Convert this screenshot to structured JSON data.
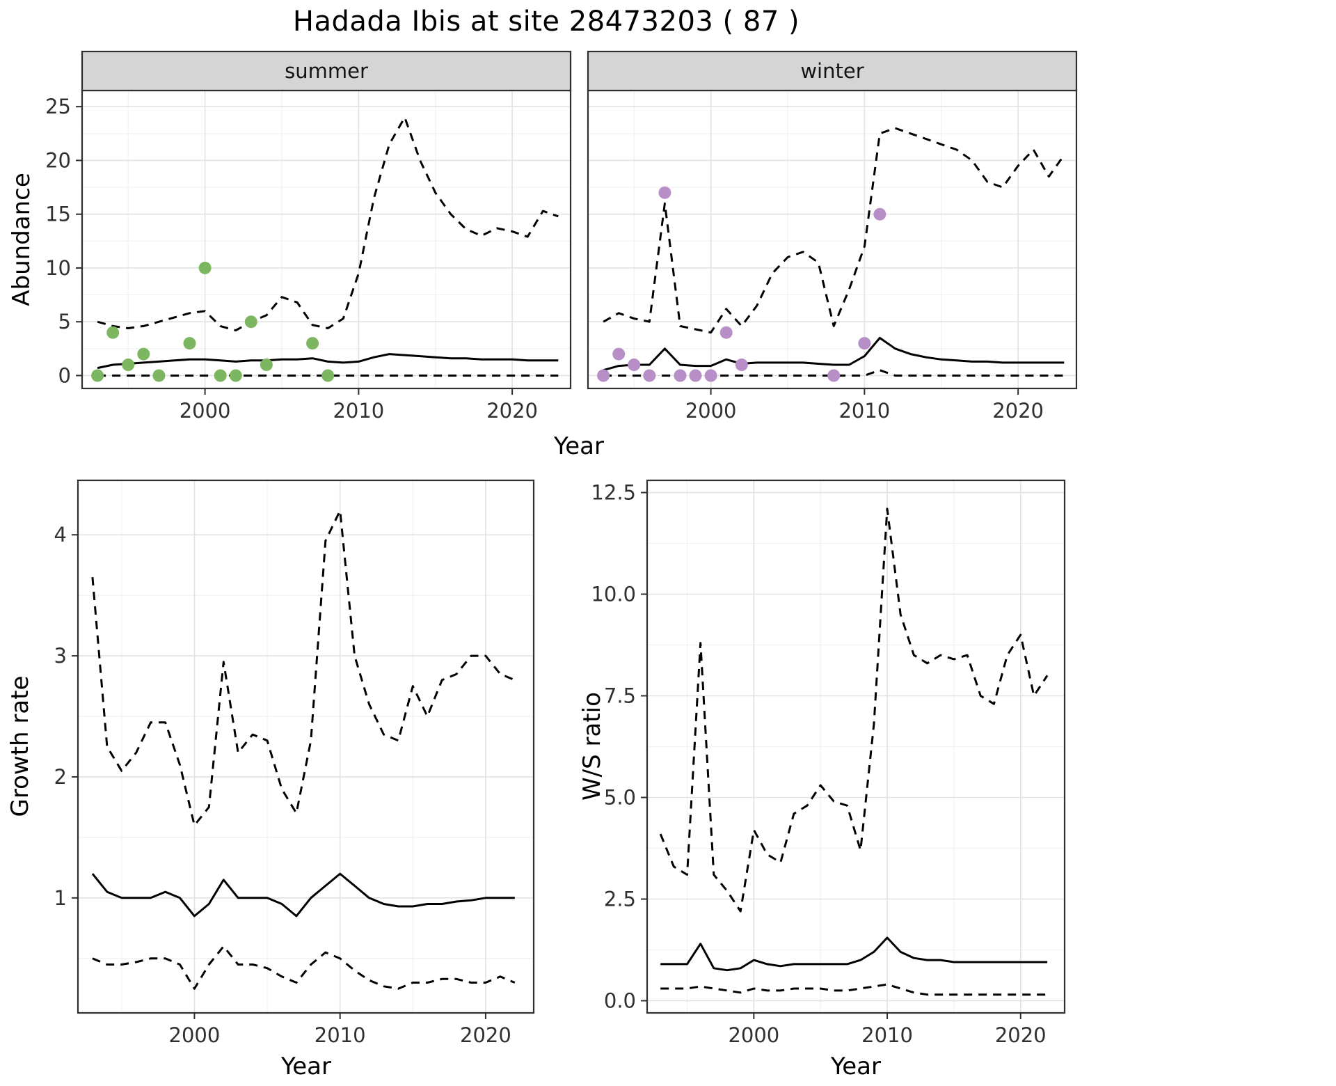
{
  "title": "Hadada Ibis at site 28473203 ( 87 )",
  "colors": {
    "summer_point": "#7db661",
    "winter_point": "#b78fc6",
    "line": "#000000",
    "strip_bg": "#d5d5d5",
    "strip_text": "#141414",
    "panel_border": "#2f2f2f",
    "grid_major": "#e2e2e2",
    "grid_minor": "#f1f1f1",
    "tick_text": "#303030",
    "background": "#ffffff"
  },
  "chart_data": [
    {
      "id": "abundance-summer",
      "type": "line",
      "facet_label": "summer",
      "xlabel": "Year",
      "ylabel": "Abundance",
      "xlim": [
        1992,
        2023.8
      ],
      "ylim": [
        -1.2,
        26.5
      ],
      "xticks": [
        2000,
        2010,
        2020
      ],
      "xtick_labels": [
        "2000",
        "2010",
        "2020"
      ],
      "yticks": [
        0,
        5,
        10,
        15,
        20,
        25
      ],
      "ytick_labels": [
        "0",
        "5",
        "10",
        "15",
        "20",
        "25"
      ],
      "years": [
        1993,
        1994,
        1995,
        1996,
        1997,
        1998,
        1999,
        2000,
        2001,
        2002,
        2003,
        2004,
        2005,
        2006,
        2007,
        2008,
        2009,
        2010,
        2011,
        2012,
        2013,
        2014,
        2015,
        2016,
        2017,
        2018,
        2019,
        2020,
        2021,
        2022,
        2023
      ],
      "series": [
        {
          "name": "upper-ci",
          "style": "dashed",
          "y": [
            5.0,
            4.6,
            4.4,
            4.6,
            5.0,
            5.4,
            5.8,
            6.0,
            4.6,
            4.2,
            5.0,
            5.6,
            7.3,
            6.8,
            4.7,
            4.4,
            5.3,
            9.5,
            16.5,
            21.5,
            24.0,
            20.0,
            17.0,
            15.0,
            13.6,
            13.0,
            13.7,
            13.4,
            12.9,
            15.3,
            14.8
          ]
        },
        {
          "name": "median",
          "style": "solid",
          "y": [
            0.7,
            1.0,
            1.1,
            1.2,
            1.3,
            1.4,
            1.5,
            1.5,
            1.4,
            1.3,
            1.4,
            1.4,
            1.5,
            1.5,
            1.6,
            1.3,
            1.2,
            1.3,
            1.7,
            2.0,
            1.9,
            1.8,
            1.7,
            1.6,
            1.6,
            1.5,
            1.5,
            1.5,
            1.4,
            1.4,
            1.4
          ]
        },
        {
          "name": "lower-ci",
          "style": "dashed",
          "y": [
            0,
            0,
            0,
            0,
            0,
            0,
            0,
            0,
            0,
            0,
            0,
            0,
            0,
            0,
            0,
            0,
            0,
            0,
            0,
            0,
            0,
            0,
            0,
            0,
            0,
            0,
            0,
            0,
            0,
            0,
            0
          ]
        }
      ],
      "points": {
        "name": "observed-counts-summer",
        "color": "#7db661",
        "x": [
          1993,
          1994,
          1995,
          1996,
          1997,
          1999,
          2000,
          2001,
          2002,
          2003,
          2004,
          2007,
          2008
        ],
        "y": [
          0,
          4,
          1,
          2,
          0,
          3,
          10,
          0,
          0,
          5,
          1,
          3,
          0
        ]
      }
    },
    {
      "id": "abundance-winter",
      "type": "line",
      "facet_label": "winter",
      "xlabel": "Year",
      "ylabel": "Abundance",
      "xlim": [
        1992,
        2023.8
      ],
      "ylim": [
        -1.2,
        26.5
      ],
      "xticks": [
        2000,
        2010,
        2020
      ],
      "xtick_labels": [
        "2000",
        "2010",
        "2020"
      ],
      "yticks": [
        0,
        5,
        10,
        15,
        20,
        25
      ],
      "ytick_labels": [
        "0",
        "5",
        "10",
        "15",
        "20",
        "25"
      ],
      "years": [
        1993,
        1994,
        1995,
        1996,
        1997,
        1998,
        1999,
        2000,
        2001,
        2002,
        2003,
        2004,
        2005,
        2006,
        2007,
        2008,
        2009,
        2010,
        2011,
        2012,
        2013,
        2014,
        2015,
        2016,
        2017,
        2018,
        2019,
        2020,
        2021,
        2022,
        2023
      ],
      "series": [
        {
          "name": "upper-ci",
          "style": "dashed",
          "y": [
            5.0,
            5.8,
            5.3,
            5.0,
            16.0,
            4.6,
            4.3,
            4.0,
            6.2,
            4.6,
            6.5,
            9.5,
            11.0,
            11.5,
            10.5,
            4.6,
            8.0,
            12.0,
            22.5,
            23.0,
            22.5,
            22.0,
            21.5,
            21.0,
            20.0,
            18.0,
            17.5,
            19.5,
            21.0,
            18.5,
            20.5
          ]
        },
        {
          "name": "median",
          "style": "solid",
          "y": [
            0.5,
            0.9,
            1.0,
            1.0,
            2.5,
            1.0,
            0.9,
            0.9,
            1.5,
            1.1,
            1.2,
            1.2,
            1.2,
            1.2,
            1.1,
            1.0,
            1.0,
            1.8,
            3.5,
            2.5,
            2.0,
            1.7,
            1.5,
            1.4,
            1.3,
            1.3,
            1.2,
            1.2,
            1.2,
            1.2,
            1.2
          ]
        },
        {
          "name": "lower-ci",
          "style": "dashed",
          "y": [
            0,
            0,
            0,
            0,
            0,
            0,
            0,
            0,
            0,
            0,
            0,
            0,
            0,
            0,
            0,
            0,
            0,
            0,
            0.5,
            0,
            0,
            0,
            0,
            0,
            0,
            0,
            0,
            0,
            0,
            0,
            0
          ]
        }
      ],
      "points": {
        "name": "observed-counts-winter",
        "color": "#b78fc6",
        "x": [
          1993,
          1994,
          1995,
          1996,
          1997,
          1998,
          1999,
          2000,
          2001,
          2002,
          2008,
          2010,
          2011
        ],
        "y": [
          0,
          2,
          1,
          0,
          17,
          0,
          0,
          0,
          4,
          1,
          0,
          3,
          15
        ]
      }
    },
    {
      "id": "growth-rate",
      "type": "line",
      "facet_label": "",
      "xlabel": "Year",
      "ylabel": "Growth rate",
      "xlim": [
        1992,
        2023.3
      ],
      "ylim": [
        0.05,
        4.45
      ],
      "xticks": [
        2000,
        2010,
        2020
      ],
      "xtick_labels": [
        "2000",
        "2010",
        "2020"
      ],
      "yticks": [
        1,
        2,
        3,
        4
      ],
      "ytick_labels": [
        "1",
        "2",
        "3",
        "4"
      ],
      "years": [
        1993,
        1994,
        1995,
        1996,
        1997,
        1998,
        1999,
        2000,
        2001,
        2002,
        2003,
        2004,
        2005,
        2006,
        2007,
        2008,
        2009,
        2010,
        2011,
        2012,
        2013,
        2014,
        2015,
        2016,
        2017,
        2018,
        2019,
        2020,
        2021,
        2022
      ],
      "series": [
        {
          "name": "upper-ci",
          "style": "dashed",
          "y": [
            3.65,
            2.25,
            2.05,
            2.2,
            2.45,
            2.45,
            2.1,
            1.6,
            1.75,
            2.95,
            2.2,
            2.35,
            2.3,
            1.9,
            1.7,
            2.3,
            3.95,
            4.2,
            3.0,
            2.6,
            2.35,
            2.3,
            2.75,
            2.5,
            2.8,
            2.85,
            3.0,
            3.0,
            2.85,
            2.8
          ]
        },
        {
          "name": "median",
          "style": "solid",
          "y": [
            1.2,
            1.05,
            1.0,
            1.0,
            1.0,
            1.05,
            1.0,
            0.85,
            0.95,
            1.15,
            1.0,
            1.0,
            1.0,
            0.95,
            0.85,
            1.0,
            1.1,
            1.2,
            1.1,
            1.0,
            0.95,
            0.93,
            0.93,
            0.95,
            0.95,
            0.97,
            0.98,
            1.0,
            1.0,
            1.0
          ]
        },
        {
          "name": "lower-ci",
          "style": "dashed",
          "y": [
            0.5,
            0.45,
            0.45,
            0.47,
            0.5,
            0.5,
            0.45,
            0.25,
            0.45,
            0.6,
            0.45,
            0.45,
            0.42,
            0.35,
            0.3,
            0.45,
            0.55,
            0.5,
            0.4,
            0.32,
            0.27,
            0.25,
            0.3,
            0.3,
            0.33,
            0.33,
            0.3,
            0.3,
            0.35,
            0.3
          ]
        }
      ]
    },
    {
      "id": "ws-ratio",
      "type": "line",
      "facet_label": "",
      "xlabel": "Year",
      "ylabel": "W/S ratio",
      "xlim": [
        1992,
        2023.3
      ],
      "ylim": [
        -0.3,
        12.8
      ],
      "xticks": [
        2000,
        2010,
        2020
      ],
      "xtick_labels": [
        "2000",
        "2010",
        "2020"
      ],
      "yticks": [
        0,
        2.5,
        5,
        7.5,
        10,
        12.5
      ],
      "ytick_labels": [
        "0.0",
        "2.5",
        "5.0",
        "7.5",
        "10.0",
        "12.5"
      ],
      "years": [
        1993,
        1994,
        1995,
        1996,
        1997,
        1998,
        1999,
        2000,
        2001,
        2002,
        2003,
        2004,
        2005,
        2006,
        2007,
        2008,
        2009,
        2010,
        2011,
        2012,
        2013,
        2014,
        2015,
        2016,
        2017,
        2018,
        2019,
        2020,
        2021,
        2022
      ],
      "series": [
        {
          "name": "upper-ci",
          "style": "dashed",
          "y": [
            4.1,
            3.3,
            3.1,
            8.8,
            3.1,
            2.7,
            2.2,
            4.2,
            3.6,
            3.4,
            4.6,
            4.8,
            5.3,
            4.9,
            4.8,
            3.7,
            6.8,
            12.1,
            9.5,
            8.5,
            8.3,
            8.5,
            8.4,
            8.5,
            7.5,
            7.3,
            8.5,
            9.0,
            7.5,
            8.0
          ]
        },
        {
          "name": "median",
          "style": "solid",
          "y": [
            0.9,
            0.9,
            0.9,
            1.4,
            0.8,
            0.75,
            0.8,
            1.0,
            0.9,
            0.85,
            0.9,
            0.9,
            0.9,
            0.9,
            0.9,
            1.0,
            1.2,
            1.55,
            1.2,
            1.05,
            1.0,
            1.0,
            0.95,
            0.95,
            0.95,
            0.95,
            0.95,
            0.95,
            0.95,
            0.95
          ]
        },
        {
          "name": "lower-ci",
          "style": "dashed",
          "y": [
            0.3,
            0.3,
            0.3,
            0.35,
            0.3,
            0.25,
            0.2,
            0.3,
            0.25,
            0.25,
            0.3,
            0.3,
            0.3,
            0.25,
            0.25,
            0.3,
            0.35,
            0.4,
            0.3,
            0.2,
            0.15,
            0.15,
            0.15,
            0.15,
            0.15,
            0.15,
            0.15,
            0.15,
            0.15,
            0.15
          ]
        }
      ]
    }
  ]
}
